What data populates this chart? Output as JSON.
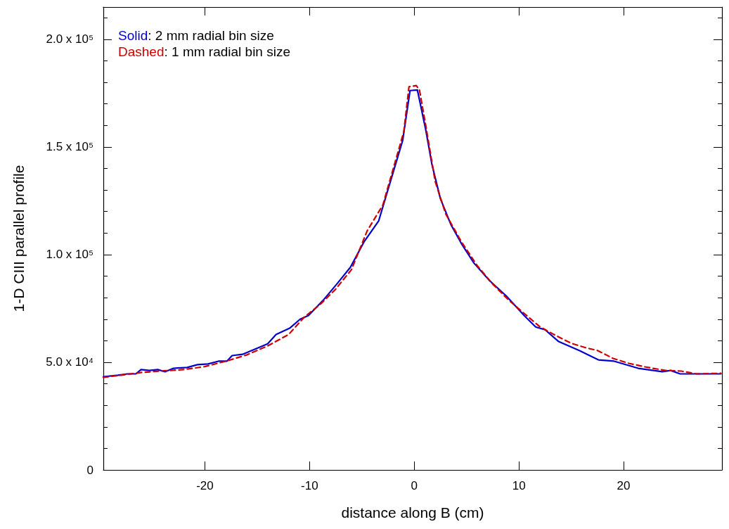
{
  "chart_data": {
    "type": "line",
    "xlabel": "distance along B (cm)",
    "ylabel": "1-D CIII parallel profile",
    "xlim": [
      -29.7,
      29.4
    ],
    "xticks": [
      -20,
      -10,
      0,
      10,
      20
    ],
    "ylim": [
      0,
      215000
    ],
    "yticks": [
      {
        "value": 0,
        "label": "0"
      },
      {
        "value": 50000,
        "label": "5.0 x 10⁴"
      },
      {
        "value": 100000,
        "label": "1.0 x 10⁵"
      },
      {
        "value": 150000,
        "label": "1.5 x 10⁵"
      },
      {
        "value": 200000,
        "label": "2.0 x 10⁵"
      }
    ],
    "legend": "top left",
    "marker": "none",
    "grid": false,
    "series": [
      {
        "name": "Solid: 2 mm radial bin size",
        "color": "#0000cc",
        "line_style": "solid",
        "x": [
          -29.7,
          -28.3,
          -27.4,
          -26.6,
          -26.1,
          -25.3,
          -24.5,
          -23.8,
          -23.0,
          -21.7,
          -20.7,
          -19.7,
          -18.7,
          -17.9,
          -17.4,
          -16.4,
          -15.4,
          -14.0,
          -13.2,
          -11.9,
          -10.9,
          -10.1,
          -8.7,
          -7.4,
          -6.1,
          -4.8,
          -3.4,
          -2.1,
          -1.1,
          -0.4,
          0.3,
          1.1,
          1.7,
          2.5,
          3.5,
          4.5,
          5.7,
          7.2,
          8.8,
          10.5,
          11.6,
          12.5,
          13.8,
          15.8,
          17.6,
          19.1,
          21.4,
          23.7,
          24.5,
          25.4,
          27.0,
          29.3
        ],
        "values": [
          43300,
          44000,
          44600,
          44600,
          46600,
          46200,
          46600,
          45600,
          47200,
          47600,
          48900,
          49200,
          50500,
          50500,
          53100,
          53700,
          55700,
          58600,
          62900,
          65800,
          70000,
          71700,
          78800,
          86300,
          94100,
          105900,
          115600,
          136800,
          153100,
          176200,
          176500,
          158000,
          141700,
          126000,
          114000,
          105200,
          96100,
          87900,
          80800,
          71700,
          66400,
          65100,
          59600,
          55400,
          51100,
          50500,
          47200,
          45600,
          46200,
          44600,
          44600,
          44600
        ]
      },
      {
        "name": "Dashed: 1 mm radial bin size",
        "color": "#cc0000",
        "line_style": "dashed",
        "x": [
          -29.7,
          -28.0,
          -26.0,
          -24.0,
          -22.0,
          -20.0,
          -18.0,
          -16.0,
          -14.0,
          -12.0,
          -10.5,
          -9.0,
          -7.5,
          -6.0,
          -4.5,
          -3.0,
          -2.0,
          -1.0,
          -0.5,
          0.2,
          0.5,
          1.1,
          2.0,
          3.0,
          4.5,
          6.0,
          7.5,
          9.0,
          10.5,
          12.0,
          13.5,
          15.0,
          16.5,
          17.5,
          19.0,
          20.5,
          22.0,
          24.0,
          25.5,
          27.0,
          29.3
        ],
        "values": [
          43000,
          44000,
          45300,
          46000,
          46600,
          48000,
          50500,
          53400,
          57600,
          62900,
          71000,
          76800,
          84000,
          93000,
          111000,
          123000,
          140000,
          157000,
          178000,
          178500,
          176500,
          160000,
          134000,
          119000,
          106000,
          95000,
          86300,
          79000,
          72700,
          66500,
          62500,
          58800,
          56600,
          55500,
          51800,
          49500,
          47900,
          46200,
          45900,
          44600,
          44900
        ]
      }
    ]
  }
}
